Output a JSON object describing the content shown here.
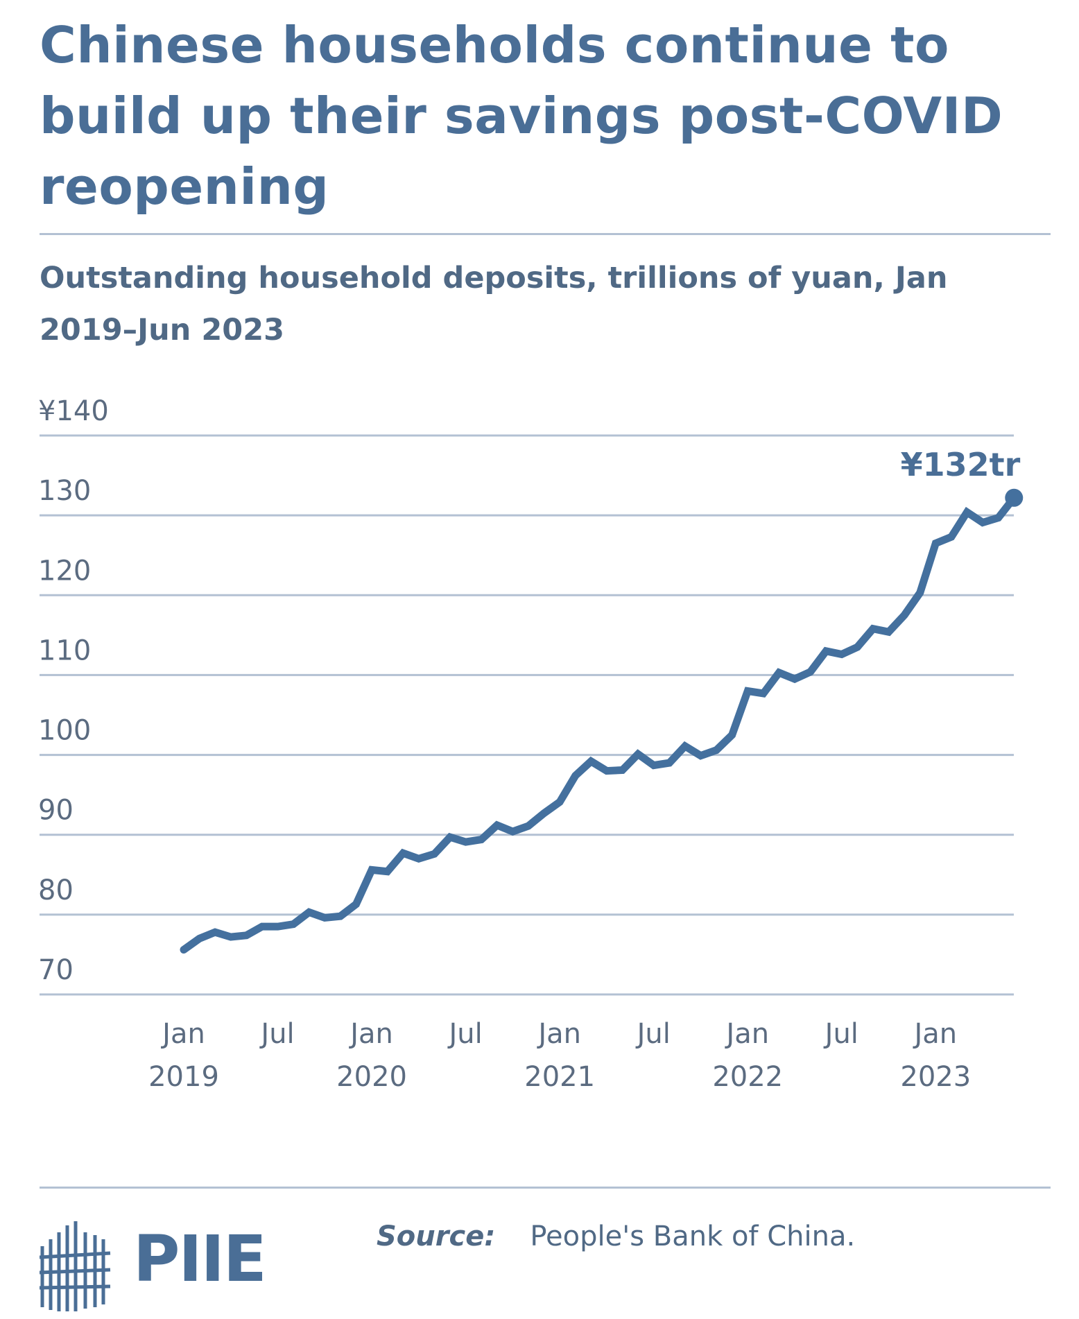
{
  "header": {
    "title": "Chinese households continue to build up their savings post-COVID reopening",
    "subtitle": "Outstanding household deposits, trillions of yuan, Jan 2019–Jun 2023"
  },
  "footer": {
    "source_label": "Source:",
    "source_text": "People's Bank of China.",
    "logo": "PIIE"
  },
  "colors": {
    "line": "#44709e",
    "grid": "#b3c1d3",
    "title": "#4a6e96"
  },
  "chart_data": {
    "type": "line",
    "title": "Chinese households continue to build up their savings post-COVID reopening",
    "subtitle": "Outstanding household deposits, trillions of yuan, Jan 2019–Jun 2023",
    "xlabel": "",
    "ylabel": "",
    "ylim": [
      70,
      140
    ],
    "yticks": [
      70,
      80,
      90,
      100,
      110,
      120,
      130,
      140
    ],
    "ytick_labels": [
      "70",
      "80",
      "90",
      "100",
      "110",
      "120",
      "130",
      "¥140"
    ],
    "xticks": [
      {
        "month": "Jan",
        "year": "2019",
        "date": "2019-01"
      },
      {
        "month": "Jul",
        "year": "",
        "date": "2019-07"
      },
      {
        "month": "Jan",
        "year": "2020",
        "date": "2020-01"
      },
      {
        "month": "Jul",
        "year": "",
        "date": "2020-07"
      },
      {
        "month": "Jan",
        "year": "2021",
        "date": "2021-01"
      },
      {
        "month": "Jul",
        "year": "",
        "date": "2021-07"
      },
      {
        "month": "Jan",
        "year": "2022",
        "date": "2022-01"
      },
      {
        "month": "Jul",
        "year": "",
        "date": "2022-07"
      },
      {
        "month": "Jan",
        "year": "2023",
        "date": "2023-01"
      }
    ],
    "grid": true,
    "legend": "none",
    "x": [
      "2019-01",
      "2019-02",
      "2019-03",
      "2019-04",
      "2019-05",
      "2019-06",
      "2019-07",
      "2019-08",
      "2019-09",
      "2019-10",
      "2019-11",
      "2019-12",
      "2020-01",
      "2020-02",
      "2020-03",
      "2020-04",
      "2020-05",
      "2020-06",
      "2020-07",
      "2020-08",
      "2020-09",
      "2020-10",
      "2020-11",
      "2020-12",
      "2021-01",
      "2021-02",
      "2021-03",
      "2021-04",
      "2021-05",
      "2021-06",
      "2021-07",
      "2021-08",
      "2021-09",
      "2021-10",
      "2021-11",
      "2021-12",
      "2022-01",
      "2022-02",
      "2022-03",
      "2022-04",
      "2022-05",
      "2022-06",
      "2022-07",
      "2022-08",
      "2022-09",
      "2022-10",
      "2022-11",
      "2022-12",
      "2023-01",
      "2023-02",
      "2023-03",
      "2023-04",
      "2023-05",
      "2023-06"
    ],
    "values": [
      75.6,
      77.0,
      77.8,
      77.2,
      77.4,
      78.5,
      78.5,
      78.8,
      80.3,
      79.6,
      79.8,
      81.3,
      85.6,
      85.4,
      87.7,
      87.0,
      87.6,
      89.7,
      89.1,
      89.4,
      91.2,
      90.4,
      91.1,
      92.7,
      94.1,
      97.4,
      99.2,
      98.0,
      98.1,
      100.1,
      98.7,
      99.0,
      101.1,
      99.9,
      100.6,
      102.5,
      108.0,
      107.7,
      110.3,
      109.5,
      110.4,
      113.0,
      112.6,
      113.5,
      115.8,
      115.4,
      117.5,
      120.3,
      126.5,
      127.3,
      130.4,
      129.1,
      129.7,
      132.2
    ],
    "annotation": {
      "text": "¥132tr",
      "date": "2023-06",
      "value": 132
    }
  }
}
